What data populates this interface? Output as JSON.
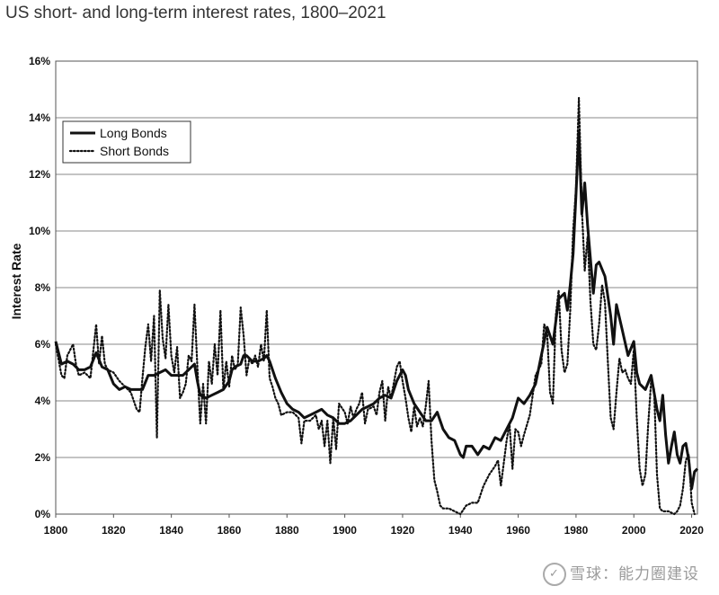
{
  "title": "US short- and long-term interest rates, 1800–2021",
  "watermark": "雪球：能力圈建设",
  "chart_data": {
    "type": "line",
    "title": "US short- and long-term interest rates, 1800–2021",
    "xlabel": "",
    "ylabel": "Interest Rate",
    "xlim": [
      1800,
      2022
    ],
    "ylim": [
      0,
      16
    ],
    "x_ticks": [
      1800,
      1820,
      1840,
      1860,
      1880,
      1900,
      1920,
      1940,
      1960,
      1980,
      2000,
      2020
    ],
    "y_ticks": [
      "0%",
      "2%",
      "4%",
      "6%",
      "8%",
      "10%",
      "12%",
      "14%",
      "16%"
    ],
    "grid": "horizontal",
    "legend": "top-left",
    "series": [
      {
        "name": "Long Bonds",
        "style": "solid",
        "color": "#111111",
        "points": [
          [
            1800,
            6.1
          ],
          [
            1802,
            5.3
          ],
          [
            1804,
            5.4
          ],
          [
            1806,
            5.3
          ],
          [
            1808,
            5.1
          ],
          [
            1810,
            5.1
          ],
          [
            1812,
            5.2
          ],
          [
            1814,
            5.7
          ],
          [
            1816,
            5.2
          ],
          [
            1818,
            5.1
          ],
          [
            1820,
            4.6
          ],
          [
            1822,
            4.4
          ],
          [
            1824,
            4.5
          ],
          [
            1826,
            4.4
          ],
          [
            1828,
            4.4
          ],
          [
            1830,
            4.4
          ],
          [
            1832,
            4.9
          ],
          [
            1834,
            4.9
          ],
          [
            1836,
            5.0
          ],
          [
            1838,
            5.1
          ],
          [
            1840,
            4.9
          ],
          [
            1842,
            4.9
          ],
          [
            1844,
            4.9
          ],
          [
            1846,
            5.1
          ],
          [
            1848,
            5.3
          ],
          [
            1849,
            4.7
          ],
          [
            1850,
            4.2
          ],
          [
            1852,
            4.1
          ],
          [
            1854,
            4.2
          ],
          [
            1856,
            4.3
          ],
          [
            1858,
            4.4
          ],
          [
            1860,
            4.7
          ],
          [
            1861,
            5.1
          ],
          [
            1862,
            5.2
          ],
          [
            1864,
            5.3
          ],
          [
            1865,
            5.6
          ],
          [
            1866,
            5.6
          ],
          [
            1868,
            5.4
          ],
          [
            1870,
            5.4
          ],
          [
            1872,
            5.5
          ],
          [
            1873,
            5.6
          ],
          [
            1874,
            5.4
          ],
          [
            1876,
            4.8
          ],
          [
            1878,
            4.3
          ],
          [
            1880,
            3.9
          ],
          [
            1882,
            3.7
          ],
          [
            1884,
            3.6
          ],
          [
            1886,
            3.4
          ],
          [
            1888,
            3.5
          ],
          [
            1890,
            3.6
          ],
          [
            1892,
            3.7
          ],
          [
            1894,
            3.5
          ],
          [
            1896,
            3.4
          ],
          [
            1898,
            3.2
          ],
          [
            1900,
            3.2
          ],
          [
            1902,
            3.3
          ],
          [
            1904,
            3.5
          ],
          [
            1906,
            3.7
          ],
          [
            1908,
            3.8
          ],
          [
            1910,
            3.9
          ],
          [
            1912,
            4.1
          ],
          [
            1914,
            4.2
          ],
          [
            1916,
            4.1
          ],
          [
            1918,
            4.7
          ],
          [
            1920,
            5.1
          ],
          [
            1921,
            4.9
          ],
          [
            1922,
            4.4
          ],
          [
            1924,
            3.9
          ],
          [
            1926,
            3.6
          ],
          [
            1928,
            3.3
          ],
          [
            1930,
            3.3
          ],
          [
            1932,
            3.6
          ],
          [
            1934,
            3.0
          ],
          [
            1936,
            2.7
          ],
          [
            1938,
            2.6
          ],
          [
            1940,
            2.1
          ],
          [
            1941,
            2.0
          ],
          [
            1942,
            2.4
          ],
          [
            1944,
            2.4
          ],
          [
            1946,
            2.1
          ],
          [
            1948,
            2.4
          ],
          [
            1950,
            2.3
          ],
          [
            1952,
            2.7
          ],
          [
            1954,
            2.6
          ],
          [
            1956,
            3.0
          ],
          [
            1958,
            3.4
          ],
          [
            1960,
            4.1
          ],
          [
            1962,
            3.9
          ],
          [
            1964,
            4.2
          ],
          [
            1966,
            4.6
          ],
          [
            1968,
            5.6
          ],
          [
            1970,
            6.6
          ],
          [
            1972,
            6.0
          ],
          [
            1974,
            7.6
          ],
          [
            1976,
            7.8
          ],
          [
            1977,
            7.2
          ],
          [
            1978,
            8.1
          ],
          [
            1979,
            9.2
          ],
          [
            1980,
            11.3
          ],
          [
            1981,
            13.5
          ],
          [
            1982,
            10.6
          ],
          [
            1983,
            11.7
          ],
          [
            1984,
            10.2
          ],
          [
            1986,
            7.8
          ],
          [
            1987,
            8.8
          ],
          [
            1988,
            8.9
          ],
          [
            1990,
            8.4
          ],
          [
            1991,
            7.7
          ],
          [
            1992,
            7.0
          ],
          [
            1993,
            6.0
          ],
          [
            1994,
            7.4
          ],
          [
            1996,
            6.5
          ],
          [
            1998,
            5.6
          ],
          [
            2000,
            6.1
          ],
          [
            2001,
            5.0
          ],
          [
            2002,
            4.6
          ],
          [
            2004,
            4.4
          ],
          [
            2006,
            4.9
          ],
          [
            2008,
            3.7
          ],
          [
            2009,
            3.3
          ],
          [
            2010,
            4.2
          ],
          [
            2011,
            2.8
          ],
          [
            2012,
            1.8
          ],
          [
            2013,
            2.4
          ],
          [
            2014,
            2.9
          ],
          [
            2015,
            2.1
          ],
          [
            2016,
            1.8
          ],
          [
            2017,
            2.4
          ],
          [
            2018,
            2.5
          ],
          [
            2019,
            1.9
          ],
          [
            2020,
            0.9
          ],
          [
            2021,
            1.5
          ],
          [
            2022,
            1.6
          ]
        ]
      },
      {
        "name": "Short Bonds",
        "style": "dotted",
        "color": "#111111",
        "points": [
          [
            1800,
            6.0
          ],
          [
            1802,
            4.9
          ],
          [
            1803,
            4.8
          ],
          [
            1804,
            5.6
          ],
          [
            1806,
            6.0
          ],
          [
            1807,
            5.3
          ],
          [
            1808,
            4.9
          ],
          [
            1810,
            5.0
          ],
          [
            1812,
            4.8
          ],
          [
            1814,
            6.7
          ],
          [
            1815,
            5.3
          ],
          [
            1816,
            6.3
          ],
          [
            1817,
            5.3
          ],
          [
            1818,
            5.1
          ],
          [
            1820,
            5.0
          ],
          [
            1822,
            4.7
          ],
          [
            1824,
            4.5
          ],
          [
            1826,
            4.3
          ],
          [
            1828,
            3.7
          ],
          [
            1829,
            3.6
          ],
          [
            1830,
            4.8
          ],
          [
            1831,
            5.9
          ],
          [
            1832,
            6.7
          ],
          [
            1833,
            5.4
          ],
          [
            1834,
            7.0
          ],
          [
            1835,
            2.7
          ],
          [
            1836,
            7.9
          ],
          [
            1837,
            6.2
          ],
          [
            1838,
            5.5
          ],
          [
            1839,
            7.4
          ],
          [
            1840,
            5.6
          ],
          [
            1841,
            5.0
          ],
          [
            1842,
            5.9
          ],
          [
            1843,
            4.1
          ],
          [
            1844,
            4.3
          ],
          [
            1845,
            4.6
          ],
          [
            1846,
            5.6
          ],
          [
            1847,
            5.4
          ],
          [
            1848,
            7.4
          ],
          [
            1849,
            5.2
          ],
          [
            1850,
            3.2
          ],
          [
            1851,
            4.6
          ],
          [
            1852,
            3.2
          ],
          [
            1853,
            5.4
          ],
          [
            1854,
            4.6
          ],
          [
            1855,
            6.0
          ],
          [
            1856,
            4.9
          ],
          [
            1857,
            7.2
          ],
          [
            1858,
            4.4
          ],
          [
            1859,
            5.4
          ],
          [
            1860,
            4.5
          ],
          [
            1861,
            5.6
          ],
          [
            1862,
            5.1
          ],
          [
            1863,
            5.3
          ],
          [
            1864,
            7.3
          ],
          [
            1865,
            6.3
          ],
          [
            1866,
            4.9
          ],
          [
            1867,
            5.5
          ],
          [
            1868,
            5.3
          ],
          [
            1869,
            5.6
          ],
          [
            1870,
            5.2
          ],
          [
            1871,
            6.0
          ],
          [
            1872,
            5.4
          ],
          [
            1873,
            7.2
          ],
          [
            1874,
            4.8
          ],
          [
            1875,
            4.5
          ],
          [
            1876,
            4.1
          ],
          [
            1877,
            3.9
          ],
          [
            1878,
            3.5
          ],
          [
            1880,
            3.6
          ],
          [
            1882,
            3.6
          ],
          [
            1884,
            3.4
          ],
          [
            1885,
            2.5
          ],
          [
            1886,
            3.3
          ],
          [
            1888,
            3.3
          ],
          [
            1890,
            3.5
          ],
          [
            1891,
            3.0
          ],
          [
            1892,
            3.3
          ],
          [
            1893,
            2.4
          ],
          [
            1894,
            3.3
          ],
          [
            1895,
            1.8
          ],
          [
            1896,
            3.4
          ],
          [
            1897,
            2.3
          ],
          [
            1898,
            3.9
          ],
          [
            1900,
            3.6
          ],
          [
            1901,
            3.2
          ],
          [
            1902,
            3.8
          ],
          [
            1903,
            3.4
          ],
          [
            1904,
            3.7
          ],
          [
            1905,
            3.9
          ],
          [
            1906,
            4.3
          ],
          [
            1907,
            3.2
          ],
          [
            1908,
            3.7
          ],
          [
            1910,
            3.8
          ],
          [
            1911,
            3.5
          ],
          [
            1912,
            4.3
          ],
          [
            1913,
            4.7
          ],
          [
            1914,
            3.3
          ],
          [
            1915,
            4.5
          ],
          [
            1916,
            4.1
          ],
          [
            1918,
            5.2
          ],
          [
            1919,
            5.4
          ],
          [
            1920,
            4.7
          ],
          [
            1921,
            4.1
          ],
          [
            1922,
            3.4
          ],
          [
            1923,
            2.9
          ],
          [
            1924,
            3.8
          ],
          [
            1925,
            3.1
          ],
          [
            1926,
            3.4
          ],
          [
            1927,
            3.1
          ],
          [
            1928,
            3.8
          ],
          [
            1929,
            4.7
          ],
          [
            1930,
            2.6
          ],
          [
            1931,
            1.2
          ],
          [
            1932,
            0.8
          ],
          [
            1933,
            0.3
          ],
          [
            1934,
            0.2
          ],
          [
            1936,
            0.2
          ],
          [
            1938,
            0.1
          ],
          [
            1940,
            0.0
          ],
          [
            1942,
            0.3
          ],
          [
            1944,
            0.4
          ],
          [
            1946,
            0.4
          ],
          [
            1948,
            1.0
          ],
          [
            1950,
            1.4
          ],
          [
            1952,
            1.7
          ],
          [
            1953,
            1.9
          ],
          [
            1954,
            1.0
          ],
          [
            1956,
            2.6
          ],
          [
            1957,
            3.2
          ],
          [
            1958,
            1.6
          ],
          [
            1959,
            3.0
          ],
          [
            1960,
            2.9
          ],
          [
            1961,
            2.4
          ],
          [
            1962,
            2.8
          ],
          [
            1964,
            3.5
          ],
          [
            1966,
            4.9
          ],
          [
            1968,
            5.3
          ],
          [
            1969,
            6.7
          ],
          [
            1970,
            6.4
          ],
          [
            1971,
            4.3
          ],
          [
            1972,
            3.9
          ],
          [
            1973,
            7.0
          ],
          [
            1974,
            7.9
          ],
          [
            1975,
            5.8
          ],
          [
            1976,
            5.0
          ],
          [
            1977,
            5.3
          ],
          [
            1978,
            7.2
          ],
          [
            1979,
            10.0
          ],
          [
            1980,
            11.5
          ],
          [
            1981,
            14.7
          ],
          [
            1982,
            10.8
          ],
          [
            1983,
            8.6
          ],
          [
            1984,
            9.8
          ],
          [
            1985,
            7.5
          ],
          [
            1986,
            6.0
          ],
          [
            1987,
            5.8
          ],
          [
            1988,
            6.7
          ],
          [
            1989,
            8.1
          ],
          [
            1990,
            7.5
          ],
          [
            1991,
            5.4
          ],
          [
            1992,
            3.4
          ],
          [
            1993,
            3.0
          ],
          [
            1994,
            4.3
          ],
          [
            1995,
            5.5
          ],
          [
            1996,
            5.0
          ],
          [
            1997,
            5.1
          ],
          [
            1998,
            4.8
          ],
          [
            1999,
            4.6
          ],
          [
            2000,
            5.8
          ],
          [
            2001,
            3.4
          ],
          [
            2002,
            1.6
          ],
          [
            2003,
            1.0
          ],
          [
            2004,
            1.4
          ],
          [
            2005,
            3.2
          ],
          [
            2006,
            4.7
          ],
          [
            2007,
            4.4
          ],
          [
            2008,
            1.4
          ],
          [
            2009,
            0.2
          ],
          [
            2010,
            0.1
          ],
          [
            2012,
            0.1
          ],
          [
            2014,
            0.0
          ],
          [
            2015,
            0.1
          ],
          [
            2016,
            0.3
          ],
          [
            2017,
            0.9
          ],
          [
            2018,
            1.9
          ],
          [
            2019,
            2.1
          ],
          [
            2020,
            0.4
          ],
          [
            2021,
            0.0
          ]
        ]
      }
    ]
  }
}
